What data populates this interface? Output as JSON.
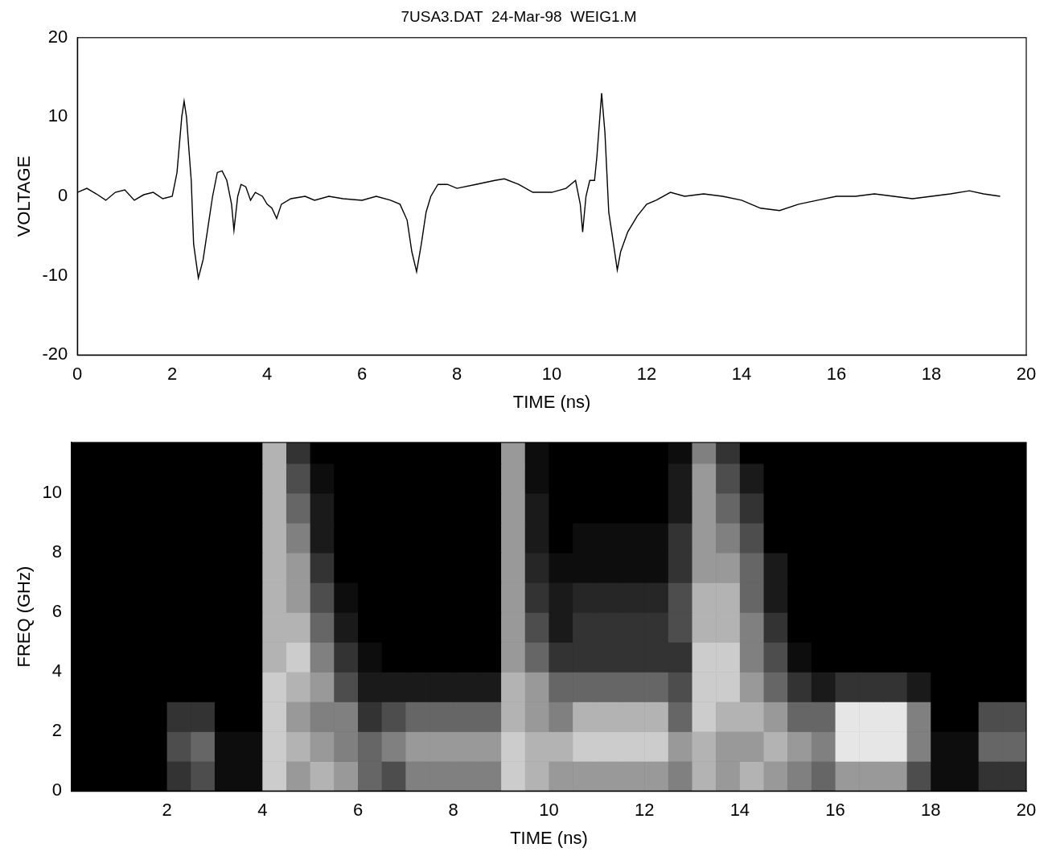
{
  "chart_data": [
    {
      "type": "line",
      "title": "7USA3.DAT  24-Mar-98  WEIG1.M",
      "x_label": "TIME (ns)",
      "y_label": "VOLTAGE",
      "xlim": [
        0,
        20
      ],
      "xticks": [
        0,
        2,
        4,
        6,
        8,
        10,
        12,
        14,
        16,
        18,
        20
      ],
      "ylim": [
        -20,
        20
      ],
      "yticks": [
        -20,
        -10,
        0,
        10,
        20
      ],
      "grid": false,
      "x": [
        0,
        0.2,
        0.4,
        0.6,
        0.8,
        1.0,
        1.2,
        1.4,
        1.6,
        1.8,
        2.0,
        2.1,
        2.2,
        2.25,
        2.3,
        2.4,
        2.45,
        2.55,
        2.65,
        2.75,
        2.85,
        2.95,
        3.05,
        3.15,
        3.25,
        3.3,
        3.38,
        3.45,
        3.55,
        3.65,
        3.75,
        3.9,
        4.0,
        4.1,
        4.2,
        4.3,
        4.5,
        4.8,
        5.0,
        5.3,
        5.6,
        6.0,
        6.3,
        6.6,
        6.8,
        6.95,
        7.05,
        7.15,
        7.25,
        7.35,
        7.45,
        7.6,
        7.8,
        8.0,
        8.4,
        8.8,
        9.0,
        9.3,
        9.6,
        10.0,
        10.3,
        10.5,
        10.6,
        10.65,
        10.72,
        10.8,
        10.9,
        10.95,
        11.05,
        11.12,
        11.2,
        11.3,
        11.38,
        11.45,
        11.6,
        11.8,
        12.0,
        12.2,
        12.5,
        12.8,
        13.2,
        13.6,
        14.0,
        14.4,
        14.8,
        15.2,
        15.6,
        16.0,
        16.4,
        16.8,
        17.2,
        17.6,
        18.0,
        18.4,
        18.8,
        19.1,
        19.45
      ],
      "series": [
        {
          "color": "#000000",
          "values": [
            0.5,
            1,
            0.3,
            -0.5,
            0.5,
            0.8,
            -0.5,
            0.2,
            0.5,
            -0.3,
            0,
            3,
            10,
            12,
            10,
            2,
            -6,
            -10.3,
            -8,
            -4,
            0,
            3,
            3.2,
            2,
            -1,
            -4.3,
            0,
            1.5,
            1.2,
            -0.5,
            0.5,
            0,
            -1,
            -1.5,
            -2.8,
            -1,
            -0.3,
            0,
            -0.5,
            0,
            -0.3,
            -0.5,
            0,
            -0.5,
            -1,
            -3,
            -7,
            -9.5,
            -6,
            -2,
            0,
            1.5,
            1.5,
            1,
            1.5,
            2,
            2.2,
            1.5,
            0.5,
            0.5,
            1,
            2,
            -1,
            -4.5,
            0,
            2,
            2,
            5,
            13,
            8,
            -2,
            -6,
            -9.3,
            -7,
            -4.5,
            -2.5,
            -1,
            -0.5,
            0.5,
            0,
            0.3,
            0,
            -0.5,
            -1.5,
            -1.8,
            -1,
            -0.5,
            0,
            0,
            0.3,
            0,
            -0.3,
            0,
            0.3,
            0.7,
            0.3,
            0
          ]
        }
      ]
    },
    {
      "type": "heatmap",
      "x_label": "TIME (ns)",
      "y_label": "FREQ (GHz)",
      "xlim": [
        0,
        20
      ],
      "xticks": [
        2,
        4,
        6,
        8,
        10,
        12,
        14,
        16,
        18,
        20
      ],
      "ylim": [
        0,
        11.7
      ],
      "yticks": [
        0,
        2,
        4,
        6,
        8,
        10
      ],
      "grid": false,
      "colors": [
        "#000000",
        "#ffffff"
      ],
      "zlim": [
        0,
        1
      ],
      "x_bins": [
        0,
        0.5,
        1,
        1.5,
        2,
        2.5,
        3,
        3.5,
        4,
        4.5,
        5,
        5.5,
        6,
        6.5,
        7,
        7.5,
        8,
        8.5,
        9,
        9.5,
        10,
        10.5,
        11,
        11.5,
        12,
        12.5,
        13,
        13.5,
        14,
        14.5,
        15,
        15.5,
        16,
        16.5,
        17,
        17.5,
        18,
        18.5,
        19,
        19.5,
        20
      ],
      "y_bins": [
        0,
        1,
        2,
        3,
        4,
        5,
        6,
        7,
        8,
        9,
        10,
        11,
        12
      ],
      "cells": [
        [
          0,
          0,
          0,
          0,
          0.2,
          0.3,
          0.05,
          0.05,
          0.8,
          0.6,
          0.7,
          0.6,
          0.4,
          0.3,
          0.5,
          0.5,
          0.5,
          0.5,
          0.8,
          0.7,
          0.6,
          0.6,
          0.6,
          0.6,
          0.6,
          0.5,
          0.7,
          0.6,
          0.7,
          0.6,
          0.5,
          0.4,
          0.6,
          0.6,
          0.6,
          0.3,
          0.05,
          0.05,
          0.2,
          0.2
        ],
        [
          0,
          0,
          0,
          0,
          0.3,
          0.4,
          0.05,
          0.05,
          0.8,
          0.7,
          0.6,
          0.5,
          0.4,
          0.5,
          0.6,
          0.6,
          0.6,
          0.6,
          0.8,
          0.7,
          0.7,
          0.8,
          0.8,
          0.8,
          0.8,
          0.6,
          0.7,
          0.6,
          0.6,
          0.7,
          0.6,
          0.5,
          0.9,
          0.9,
          0.9,
          0.5,
          0.05,
          0.05,
          0.4,
          0.4
        ],
        [
          0,
          0,
          0,
          0,
          0.2,
          0.2,
          0,
          0,
          0.8,
          0.6,
          0.5,
          0.5,
          0.2,
          0.3,
          0.4,
          0.4,
          0.4,
          0.4,
          0.7,
          0.6,
          0.5,
          0.7,
          0.7,
          0.7,
          0.7,
          0.4,
          0.8,
          0.7,
          0.7,
          0.6,
          0.4,
          0.4,
          0.9,
          0.9,
          0.9,
          0.5,
          0,
          0,
          0.3,
          0.3
        ],
        [
          0,
          0,
          0,
          0,
          0,
          0,
          0,
          0,
          0.8,
          0.7,
          0.6,
          0.3,
          0.1,
          0.1,
          0.1,
          0.1,
          0.1,
          0.1,
          0.7,
          0.6,
          0.4,
          0.4,
          0.4,
          0.4,
          0.4,
          0.3,
          0.8,
          0.8,
          0.6,
          0.4,
          0.2,
          0.1,
          0.2,
          0.2,
          0.2,
          0.1,
          0,
          0,
          0,
          0
        ],
        [
          0,
          0,
          0,
          0,
          0,
          0,
          0,
          0,
          0.7,
          0.8,
          0.5,
          0.2,
          0.05,
          0,
          0,
          0,
          0,
          0,
          0.6,
          0.4,
          0.2,
          0.2,
          0.2,
          0.2,
          0.2,
          0.2,
          0.8,
          0.8,
          0.5,
          0.3,
          0.05,
          0,
          0,
          0,
          0,
          0,
          0,
          0,
          0,
          0
        ],
        [
          0,
          0,
          0,
          0,
          0,
          0,
          0,
          0,
          0.7,
          0.7,
          0.4,
          0.1,
          0,
          0,
          0,
          0,
          0,
          0,
          0.6,
          0.3,
          0.1,
          0.2,
          0.2,
          0.2,
          0.2,
          0.3,
          0.7,
          0.7,
          0.5,
          0.2,
          0,
          0,
          0,
          0,
          0,
          0,
          0,
          0,
          0,
          0
        ],
        [
          0,
          0,
          0,
          0,
          0,
          0,
          0,
          0,
          0.7,
          0.6,
          0.3,
          0.05,
          0,
          0,
          0,
          0,
          0,
          0,
          0.6,
          0.2,
          0.1,
          0.15,
          0.15,
          0.15,
          0.15,
          0.3,
          0.7,
          0.7,
          0.4,
          0.1,
          0,
          0,
          0,
          0,
          0,
          0,
          0,
          0,
          0,
          0
        ],
        [
          0,
          0,
          0,
          0,
          0,
          0,
          0,
          0,
          0.7,
          0.6,
          0.2,
          0,
          0,
          0,
          0,
          0,
          0,
          0,
          0.6,
          0.15,
          0.05,
          0.05,
          0.05,
          0.05,
          0.05,
          0.2,
          0.6,
          0.6,
          0.4,
          0.1,
          0,
          0,
          0,
          0,
          0,
          0,
          0,
          0,
          0,
          0
        ],
        [
          0,
          0,
          0,
          0,
          0,
          0,
          0,
          0,
          0.7,
          0.5,
          0.1,
          0,
          0,
          0,
          0,
          0,
          0,
          0,
          0.6,
          0.1,
          0,
          0.05,
          0.05,
          0.05,
          0.05,
          0.2,
          0.6,
          0.5,
          0.3,
          0,
          0,
          0,
          0,
          0,
          0,
          0,
          0,
          0,
          0,
          0
        ],
        [
          0,
          0,
          0,
          0,
          0,
          0,
          0,
          0,
          0.7,
          0.4,
          0.1,
          0,
          0,
          0,
          0,
          0,
          0,
          0,
          0.6,
          0.1,
          0,
          0,
          0,
          0,
          0,
          0.1,
          0.6,
          0.4,
          0.2,
          0,
          0,
          0,
          0,
          0,
          0,
          0,
          0,
          0,
          0,
          0
        ],
        [
          0,
          0,
          0,
          0,
          0,
          0,
          0,
          0,
          0.7,
          0.3,
          0.05,
          0,
          0,
          0,
          0,
          0,
          0,
          0,
          0.6,
          0.05,
          0,
          0,
          0,
          0,
          0,
          0.1,
          0.6,
          0.3,
          0.1,
          0,
          0,
          0,
          0,
          0,
          0,
          0,
          0,
          0,
          0,
          0
        ],
        [
          0,
          0,
          0,
          0,
          0,
          0,
          0,
          0,
          0.7,
          0.2,
          0,
          0,
          0,
          0,
          0,
          0,
          0,
          0,
          0.6,
          0.05,
          0,
          0,
          0,
          0,
          0,
          0.05,
          0.5,
          0.2,
          0,
          0,
          0,
          0,
          0,
          0,
          0,
          0,
          0,
          0,
          0,
          0
        ]
      ]
    }
  ]
}
